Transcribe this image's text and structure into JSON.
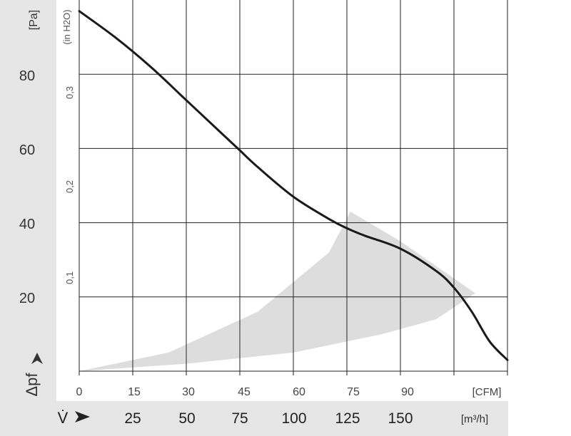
{
  "chart_data": {
    "type": "line",
    "title": "",
    "xlabel": "V̇",
    "ylabel": "Δpf",
    "x_unit_top": "[CFM]",
    "x_unit_bottom": "[m³/h]",
    "y_unit_left": "[Pa]",
    "y_unit_right": "(in H2O)",
    "xlim_cfm": [
      0,
      120
    ],
    "ylim_pa": [
      0,
      100
    ],
    "grid": true,
    "x_ticks_cfm": [
      "0",
      "15",
      "30",
      "45",
      "60",
      "75",
      "90"
    ],
    "x_ticks_m3h": [
      "25",
      "50",
      "75",
      "100",
      "125",
      "150"
    ],
    "y_ticks_pa": [
      "20",
      "40",
      "60",
      "80"
    ],
    "y_ticks_inh2o": [
      "0,1",
      "0,2",
      "0,3"
    ],
    "series": [
      {
        "x_cfm": [
          0,
          10,
          20,
          30,
          40,
          45,
          50,
          60,
          70,
          75,
          80,
          90,
          100,
          105,
          110,
          115,
          120
        ],
        "y_pa": [
          97,
          90,
          82,
          73,
          64,
          59.5,
          55,
          47,
          41,
          38.5,
          36.5,
          33,
          27,
          22.5,
          16,
          8,
          3
        ]
      }
    ],
    "shaded_region": {
      "description_values": "optimal operating range",
      "upper_x_cfm": [
        0,
        25,
        50,
        70,
        76,
        90,
        105,
        111
      ],
      "upper_y_pa": [
        0,
        5,
        16,
        32,
        43,
        35,
        25,
        21
      ],
      "lower_x_cfm": [
        111,
        100,
        85,
        60,
        30,
        0
      ],
      "lower_y_pa": [
        21,
        14,
        10,
        5,
        2,
        0
      ]
    },
    "colors": {
      "curve": "#1a1a1a",
      "shade": "#dddddd",
      "grid": "#222222",
      "left_band": "#e6e6e6",
      "bottom_band": "#e6e6e6"
    }
  }
}
